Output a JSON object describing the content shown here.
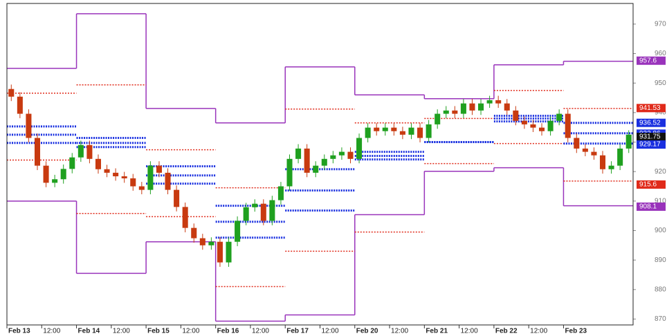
{
  "chart_data": {
    "type": "candlestick",
    "categories": [
      "Feb 13",
      "12:00",
      "Feb 14",
      "12:00",
      "Feb 15",
      "12:00",
      "Feb 16",
      "12:00",
      "Feb 17",
      "12:00",
      "Feb 20",
      "12:00",
      "Feb 21",
      "12:00",
      "Feb 22",
      "12:00",
      "Feb 23",
      null
    ],
    "open": [
      948,
      945.4,
      939.6,
      931.4,
      922,
      916.2,
      917.4,
      920.9,
      924.8,
      929,
      924.3,
      920.8,
      919.6,
      918.4,
      917.7,
      915,
      913.8,
      922,
      919.6,
      913.8,
      908,
      900.9,
      897.4,
      895,
      896.2,
      889.2,
      896.2,
      903.3,
      907.9,
      909.1,
      903.3,
      910.3,
      915,
      924.3,
      927.8,
      919.6,
      922,
      924.3,
      925.5,
      926.7,
      924.3,
      931.4,
      934.9,
      933.7,
      934.9,
      933.7,
      932.5,
      934.9,
      931.4,
      936,
      939.6,
      940.7,
      939.6,
      943.1,
      940.7,
      943.1,
      944.2,
      943.1,
      940.7,
      937.2,
      936,
      934.9,
      933.7,
      937.2,
      939.6,
      931.4,
      927.8,
      926.7,
      925.5,
      920.8,
      922,
      927.8
    ],
    "high": [
      949.5,
      946.9,
      941.1,
      932.9,
      923.5,
      918.9,
      922.4,
      926.3,
      930.5,
      930.5,
      925.8,
      922.3,
      921.1,
      919.9,
      919.2,
      916.5,
      923.5,
      923.5,
      921.1,
      915.3,
      909.5,
      902.4,
      898.9,
      897.7,
      897.7,
      897.7,
      904.8,
      909.4,
      910.6,
      910.6,
      911.8,
      916.5,
      925.8,
      929.3,
      929.3,
      923.5,
      925.8,
      927,
      928.2,
      928.2,
      932.9,
      936.4,
      936.4,
      936.4,
      936.4,
      935.2,
      936.4,
      936.4,
      937.5,
      941.1,
      942.2,
      942.2,
      944.6,
      944.6,
      944.6,
      945.7,
      945.7,
      944.6,
      942.2,
      938.7,
      937.5,
      936.4,
      938.7,
      941.1,
      941.1,
      932.9,
      929.3,
      928.2,
      927,
      923.5,
      929.3,
      934
    ],
    "low": [
      943.9,
      938.1,
      929.9,
      920.5,
      914.7,
      914.7,
      915.9,
      919.4,
      923.3,
      922.8,
      919.3,
      918.1,
      916.9,
      916.2,
      913.5,
      912.3,
      912.3,
      918.1,
      912.3,
      906.5,
      899.4,
      895.9,
      893.5,
      893.5,
      887.7,
      887.7,
      894.7,
      901.8,
      906.4,
      901.8,
      901.8,
      908.8,
      913.5,
      922.8,
      918.1,
      918.1,
      920.5,
      922.8,
      924,
      922.8,
      922.8,
      929.9,
      932.2,
      932.2,
      932.2,
      931,
      931,
      929.9,
      929.9,
      934.5,
      938.1,
      938.1,
      938.1,
      939.2,
      939.2,
      941.6,
      941.6,
      939.2,
      935.7,
      934.5,
      933.4,
      932.2,
      932.2,
      935.7,
      929.9,
      926.3,
      925.2,
      924,
      919.3,
      919.3,
      920.5,
      926.3
    ],
    "close": [
      945.4,
      939.6,
      931.4,
      922,
      916.2,
      917.4,
      920.9,
      924.8,
      929,
      924.3,
      920.8,
      919.6,
      918.4,
      917.7,
      915,
      913.8,
      922,
      919.6,
      913.8,
      908,
      900.9,
      897.4,
      895,
      896.2,
      889.2,
      896.2,
      903.3,
      907.9,
      909.1,
      903.3,
      910.3,
      915,
      924.3,
      927.8,
      919.6,
      922,
      924.3,
      925.5,
      926.7,
      924.3,
      931.4,
      934.9,
      933.7,
      934.9,
      933.7,
      932.5,
      934.9,
      931.4,
      936,
      939.6,
      940.7,
      939.6,
      943.1,
      940.7,
      943.1,
      944.2,
      943.1,
      940.7,
      937.2,
      936,
      934.9,
      933.7,
      937.2,
      939.6,
      931.4,
      927.8,
      926.7,
      925.5,
      920.8,
      922,
      927.8,
      932.5
    ],
    "up_color": "#1fa01f",
    "down_color": "#c83a10",
    "levels": [
      {
        "color": "#9933bb",
        "style": "step",
        "values": [
          955,
          973.5,
          941.4,
          936.5,
          955.5,
          946,
          944.7,
          956.2,
          957.4
        ]
      },
      {
        "color": "#9933bb",
        "style": "step",
        "values": [
          910,
          885.5,
          896.2,
          869.3,
          871.4,
          905.4,
          920.1,
          921.3,
          908.4
        ]
      },
      {
        "color": "#e02a1a",
        "style": "dashed",
        "values": [
          946.6,
          949.4,
          927.4,
          914.5,
          941.2,
          936.5,
          938,
          947.5,
          941.4
        ]
      },
      {
        "color": "#e02a1a",
        "style": "dashed",
        "values": [
          923.9,
          905.8,
          904.7,
          881,
          893,
          899.5,
          922.7,
          929.5,
          916.8
        ]
      },
      {
        "color": "#1a30e0",
        "style": "dotted",
        "values": [
          935.3,
          931.4,
          921.8,
          908.4,
          920.8,
          926.7,
          930,
          938.9,
          936.5
        ]
      },
      {
        "color": "#1a30e0",
        "style": "dotted",
        "values": [
          932.5,
          929.7,
          918.7,
          903,
          913.6,
          925.3,
          930,
          938,
          933
        ]
      },
      {
        "color": "#1a30e0",
        "style": "dotted",
        "values": [
          929.7,
          928.3,
          915.9,
          897.6,
          906.8,
          924.1,
          930,
          937,
          929.5
        ]
      }
    ],
    "price_labels": [
      {
        "value": 957.6,
        "color": "#9933bb"
      },
      {
        "value": 941.53,
        "color": "#e02a1a"
      },
      {
        "value": 936.52,
        "color": "#1a30e0"
      },
      {
        "value": 932.86,
        "color": "#1a30e0"
      },
      {
        "value": 931.75,
        "color": "#111111"
      },
      {
        "value": 929.17,
        "color": "#1a30e0"
      },
      {
        "value": 915.6,
        "color": "#e02a1a"
      },
      {
        "value": 908.1,
        "color": "#9933bb"
      }
    ],
    "ylim": [
      868,
      977
    ],
    "yticks": [
      870,
      880,
      890,
      900,
      910,
      920,
      930,
      940,
      950,
      960,
      970
    ]
  }
}
